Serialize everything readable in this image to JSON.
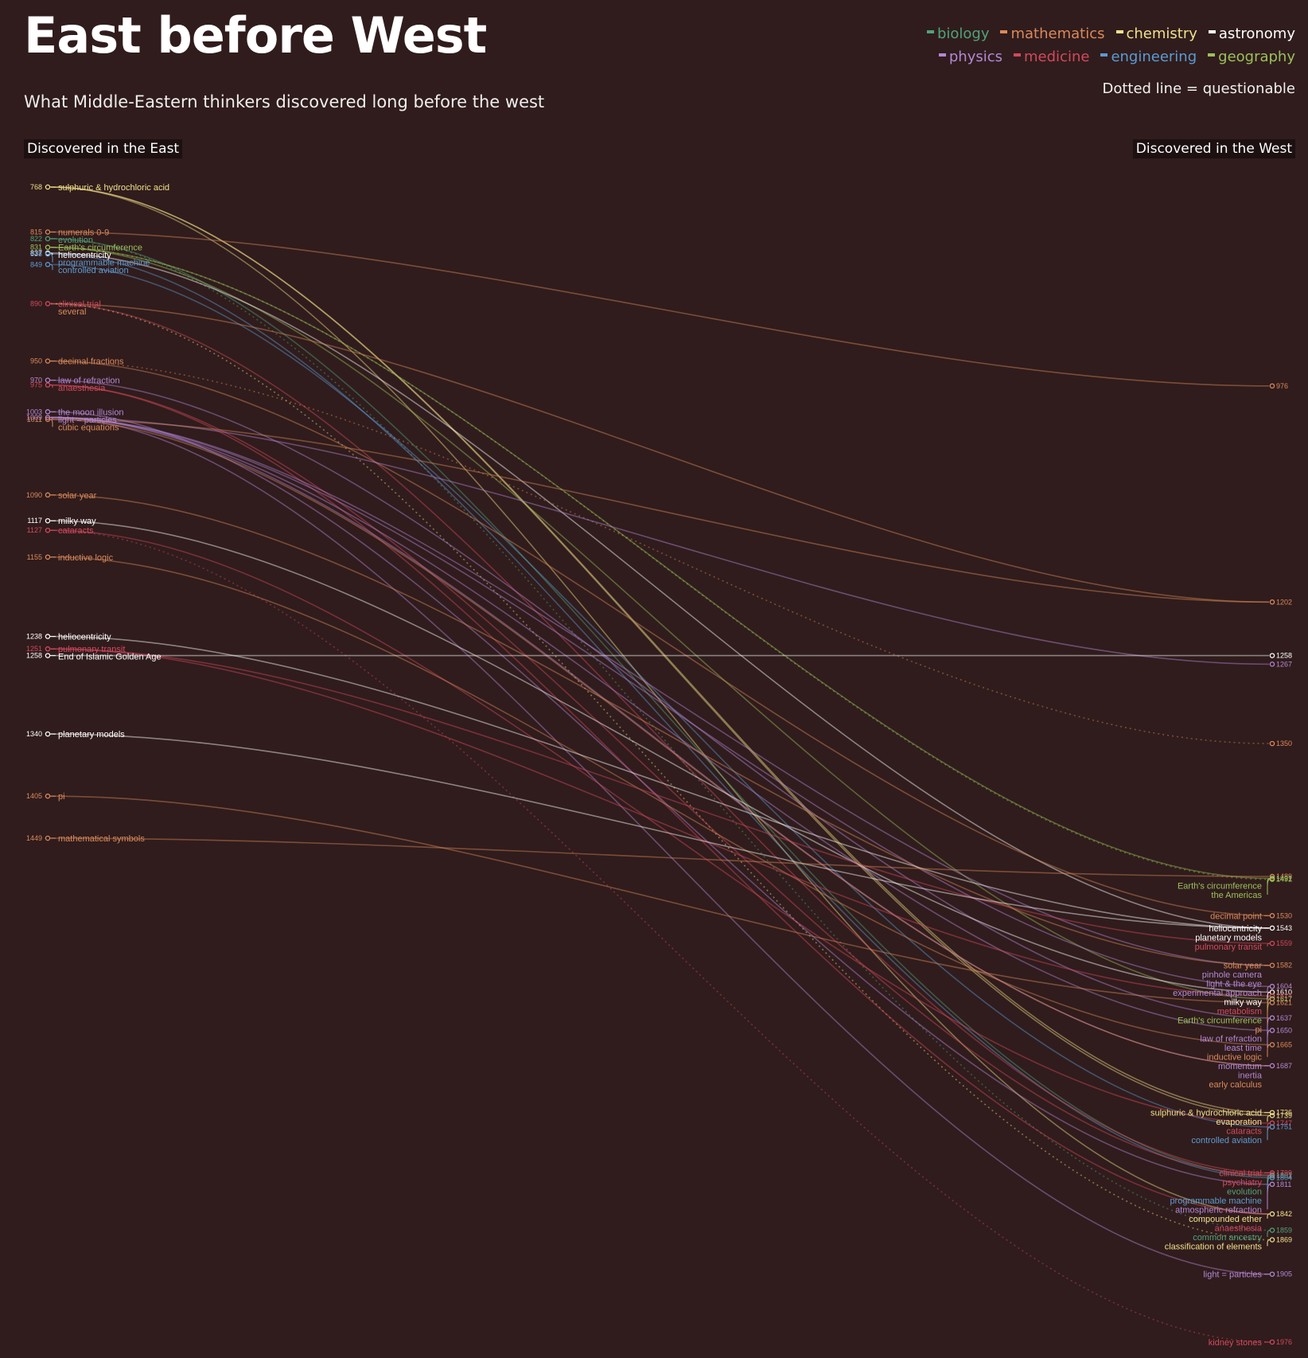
{
  "title": "East before West",
  "subtitle": "What Middle-Eastern thinkers discovered long before the west",
  "east_heading": "Discovered in the East",
  "west_heading": "Discovered in the West",
  "legend_note": "Dotted line = questionable",
  "colors": {
    "background": "#301c1c",
    "biology": "#4fa37a",
    "mathematics": "#d98a5c",
    "chemistry": "#f1e08a",
    "astronomy": "#ffffff",
    "physics": "#b388d6",
    "medicine": "#d2495f",
    "engineering": "#5b9bd2",
    "geography": "#9ac15c"
  },
  "legend": [
    {
      "key": "biology",
      "label": "biology"
    },
    {
      "key": "mathematics",
      "label": "mathematics"
    },
    {
      "key": "chemistry",
      "label": "chemistry"
    },
    {
      "key": "astronomy",
      "label": "astronomy"
    },
    {
      "key": "physics",
      "label": "physics"
    },
    {
      "key": "medicine",
      "label": "medicine"
    },
    {
      "key": "engineering",
      "label": "engineering"
    },
    {
      "key": "geography",
      "label": "geography"
    }
  ],
  "chart_data": {
    "type": "slope",
    "year_range": [
      768,
      1976
    ],
    "left_axis": "Discovered in the East",
    "right_axis": "Discovered in the West",
    "east": [
      {
        "year": 768,
        "label": "sulphuric & hydrochloric acid",
        "cat": "chemistry"
      },
      {
        "year": 815,
        "label": "numerals 0-9",
        "cat": "mathematics"
      },
      {
        "year": 822,
        "label": "evolution",
        "cat": "biology"
      },
      {
        "year": 831,
        "label": "Earth's circumference",
        "cat": "geography"
      },
      {
        "year": 837,
        "label": "heliocentricity",
        "cat": "astronomy"
      },
      {
        "year": 838,
        "label": "programmable machine",
        "cat": "engineering"
      },
      {
        "year": 849,
        "label": "controlled aviation",
        "cat": "engineering"
      },
      {
        "year": 890,
        "label": "clinical trial",
        "cat": "medicine"
      },
      {
        "year": 890,
        "label": "several",
        "cat": "mathematics",
        "no_year": true
      },
      {
        "year": 950,
        "label": "decimal fractions",
        "cat": "mathematics"
      },
      {
        "year": 970,
        "label": "law of refraction",
        "cat": "physics"
      },
      {
        "year": 975,
        "label": "anaesthesia",
        "cat": "medicine"
      },
      {
        "year": 1003,
        "label": "the moon illusion",
        "cat": "physics"
      },
      {
        "year": 1009,
        "label": "light = particles",
        "cat": "physics"
      },
      {
        "year": 1011,
        "label": "cubic equations",
        "cat": "mathematics"
      },
      {
        "year": 1090,
        "label": "solar year",
        "cat": "mathematics"
      },
      {
        "year": 1117,
        "label": "milky way",
        "cat": "astronomy"
      },
      {
        "year": 1127,
        "label": "cataracts",
        "cat": "medicine"
      },
      {
        "year": 1155,
        "label": "inductive logic",
        "cat": "mathematics"
      },
      {
        "year": 1238,
        "label": "heliocentricity",
        "cat": "astronomy"
      },
      {
        "year": 1251,
        "label": "pulmonary transit",
        "cat": "medicine"
      },
      {
        "year": 1258,
        "label": "End of Islamic Golden Age",
        "cat": "astronomy"
      },
      {
        "year": 1340,
        "label": "planetary models",
        "cat": "astronomy"
      },
      {
        "year": 1405,
        "label": "pi",
        "cat": "mathematics"
      },
      {
        "year": 1449,
        "label": "mathematical symbols",
        "cat": "mathematics"
      }
    ],
    "west": [
      {
        "year": 976,
        "label": "",
        "cat": "mathematics"
      },
      {
        "year": 1202,
        "label": "",
        "cat": "mathematics"
      },
      {
        "year": 1258,
        "label": "",
        "cat": "astronomy"
      },
      {
        "year": 1267,
        "label": "",
        "cat": "physics"
      },
      {
        "year": 1350,
        "label": "",
        "cat": "mathematics"
      },
      {
        "year": 1489,
        "label": "",
        "cat": "mathematics"
      },
      {
        "year": 1491,
        "label": "Earth's circumference",
        "cat": "geography"
      },
      {
        "year": 1492,
        "label": "the Americas",
        "cat": "geography"
      },
      {
        "year": 1530,
        "label": "decimal point",
        "cat": "mathematics"
      },
      {
        "year": 1543,
        "label": "heliocentricity",
        "cat": "astronomy"
      },
      {
        "year": 1543,
        "label": "planetary models",
        "cat": "astronomy",
        "no_year": true
      },
      {
        "year": 1559,
        "label": "pulmonary transit",
        "cat": "medicine"
      },
      {
        "year": 1582,
        "label": "solar year",
        "cat": "mathematics"
      },
      {
        "year": 1582,
        "label": "pinhole camera",
        "cat": "physics",
        "no_year": true
      },
      {
        "year": 1582,
        "label": "light & the eye",
        "cat": "physics",
        "no_year": true
      },
      {
        "year": 1604,
        "label": "experimental approach",
        "cat": "physics"
      },
      {
        "year": 1610,
        "label": "milky way",
        "cat": "astronomy"
      },
      {
        "year": 1614,
        "label": "metabolism",
        "cat": "medicine"
      },
      {
        "year": 1617,
        "label": "Earth's circumference",
        "cat": "geography"
      },
      {
        "year": 1621,
        "label": "pi",
        "cat": "mathematics"
      },
      {
        "year": 1637,
        "label": "law of refraction",
        "cat": "physics"
      },
      {
        "year": 1650,
        "label": "least time",
        "cat": "physics"
      },
      {
        "year": 1665,
        "label": "inductive logic",
        "cat": "mathematics"
      },
      {
        "year": 1687,
        "label": "momentum",
        "cat": "physics"
      },
      {
        "year": 1687,
        "label": "inertia",
        "cat": "physics",
        "no_year": true
      },
      {
        "year": 1687,
        "label": "early calculus",
        "cat": "mathematics",
        "no_year": true
      },
      {
        "year": 1736,
        "label": "sulphuric & hydrochloric acid",
        "cat": "chemistry"
      },
      {
        "year": 1739,
        "label": "evaporation",
        "cat": "chemistry"
      },
      {
        "year": 1747,
        "label": "cataracts",
        "cat": "medicine"
      },
      {
        "year": 1751,
        "label": "controlled aviation",
        "cat": "engineering"
      },
      {
        "year": 1799,
        "label": "clinical trial",
        "cat": "medicine"
      },
      {
        "year": 1801,
        "label": "psychiatry",
        "cat": "medicine"
      },
      {
        "year": 1802,
        "label": "evolution",
        "cat": "biology"
      },
      {
        "year": 1804,
        "label": "programmable machine",
        "cat": "engineering"
      },
      {
        "year": 1811,
        "label": "atmospheric refraction",
        "cat": "physics"
      },
      {
        "year": 1842,
        "label": "compounded ether",
        "cat": "chemistry"
      },
      {
        "year": 1842,
        "label": "anaesthesia",
        "cat": "medicine",
        "no_year": true
      },
      {
        "year": 1859,
        "label": "common ancestry",
        "cat": "biology"
      },
      {
        "year": 1869,
        "label": "classification of elements",
        "cat": "chemistry"
      },
      {
        "year": 1905,
        "label": "light = particles",
        "cat": "physics"
      },
      {
        "year": 1976,
        "label": "kidney stones",
        "cat": "medicine"
      }
    ],
    "links": [
      {
        "from": 768,
        "to": 1736,
        "cat": "chemistry",
        "dotted": false
      },
      {
        "from": 768,
        "to": 1739,
        "cat": "chemistry",
        "dotted": false
      },
      {
        "from": 768,
        "to": 1842,
        "cat": "chemistry",
        "dotted": false
      },
      {
        "from": 815,
        "to": 976,
        "cat": "mathematics",
        "dotted": false
      },
      {
        "from": 822,
        "to": 1802,
        "cat": "biology",
        "dotted": false
      },
      {
        "from": 822,
        "to": 1859,
        "cat": "biology",
        "dotted": true
      },
      {
        "from": 831,
        "to": 1491,
        "cat": "geography",
        "dotted": false
      },
      {
        "from": 831,
        "to": 1492,
        "cat": "geography",
        "dotted": true
      },
      {
        "from": 831,
        "to": 1617,
        "cat": "geography",
        "dotted": false
      },
      {
        "from": 837,
        "to": 1543,
        "cat": "astronomy",
        "dotted": false
      },
      {
        "from": 838,
        "to": 1804,
        "cat": "engineering",
        "dotted": false
      },
      {
        "from": 849,
        "to": 1751,
        "cat": "engineering",
        "dotted": false
      },
      {
        "from": 890,
        "to": 1799,
        "cat": "medicine",
        "dotted": false
      },
      {
        "from": 890,
        "to": 1202,
        "cat": "mathematics",
        "dotted": false
      },
      {
        "from": 890,
        "to": 1869,
        "cat": "chemistry",
        "dotted": true
      },
      {
        "from": 950,
        "to": 1530,
        "cat": "mathematics",
        "dotted": false
      },
      {
        "from": 950,
        "to": 1350,
        "cat": "mathematics",
        "dotted": true
      },
      {
        "from": 970,
        "to": 1637,
        "cat": "physics",
        "dotted": false
      },
      {
        "from": 975,
        "to": 1842,
        "cat": "medicine",
        "dotted": false
      },
      {
        "from": 975,
        "to": 1801,
        "cat": "medicine",
        "dotted": false
      },
      {
        "from": 1003,
        "to": 1811,
        "cat": "physics",
        "dotted": false
      },
      {
        "from": 1009,
        "to": 1905,
        "cat": "physics",
        "dotted": false
      },
      {
        "from": 1009,
        "to": 1582,
        "cat": "physics",
        "dotted": false
      },
      {
        "from": 1009,
        "to": 1604,
        "cat": "physics",
        "dotted": false
      },
      {
        "from": 1009,
        "to": 1267,
        "cat": "physics",
        "dotted": false
      },
      {
        "from": 1009,
        "to": 1687,
        "cat": "physics",
        "dotted": false
      },
      {
        "from": 1009,
        "to": 1650,
        "cat": "physics",
        "dotted": false
      },
      {
        "from": 1011,
        "to": 1202,
        "cat": "mathematics",
        "dotted": false
      },
      {
        "from": 1011,
        "to": 1687,
        "cat": "mathematics",
        "dotted": false
      },
      {
        "from": 1090,
        "to": 1582,
        "cat": "mathematics",
        "dotted": false
      },
      {
        "from": 1117,
        "to": 1610,
        "cat": "astronomy",
        "dotted": false
      },
      {
        "from": 1127,
        "to": 1747,
        "cat": "medicine",
        "dotted": false
      },
      {
        "from": 1127,
        "to": 1976,
        "cat": "medicine",
        "dotted": true
      },
      {
        "from": 1155,
        "to": 1665,
        "cat": "mathematics",
        "dotted": false
      },
      {
        "from": 1238,
        "to": 1543,
        "cat": "astronomy",
        "dotted": false
      },
      {
        "from": 1251,
        "to": 1559,
        "cat": "medicine",
        "dotted": false
      },
      {
        "from": 1251,
        "to": 1614,
        "cat": "medicine",
        "dotted": false
      },
      {
        "from": 1258,
        "to": 1258,
        "cat": "astronomy",
        "dotted": false
      },
      {
        "from": 1340,
        "to": 1543,
        "cat": "astronomy",
        "dotted": false
      },
      {
        "from": 1405,
        "to": 1621,
        "cat": "mathematics",
        "dotted": false
      },
      {
        "from": 1449,
        "to": 1489,
        "cat": "mathematics",
        "dotted": false
      }
    ]
  }
}
